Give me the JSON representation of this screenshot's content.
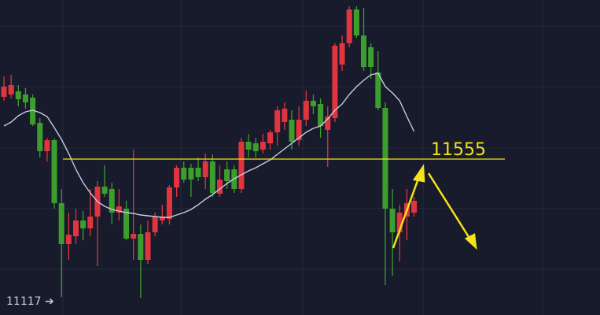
{
  "chart_data": {
    "type": "candlestick",
    "ylim": [
      11060,
      12060
    ],
    "up_color": "#e2343f",
    "down_color": "#3c9f2d",
    "ma_color": "#c9cbe0",
    "level": 11555,
    "level_color": "#f4e21a",
    "low_label": "11117 ➔",
    "open": [
      11752.5,
      11760,
      11770,
      11760,
      11750,
      11670,
      11580,
      11615,
      11415,
      11285,
      11310,
      11360,
      11335,
      11372.5,
      11467.5,
      11460,
      11385,
      11397.5,
      11302.5,
      11317.5,
      11235,
      11322.5,
      11360,
      11365,
      11465,
      11527.5,
      11527.5,
      11527.5,
      11497.5,
      11547.5,
      11445,
      11522.5,
      11522.5,
      11460,
      11610,
      11605,
      11585,
      11605,
      11640,
      11672.5,
      11680,
      11615,
      11680,
      11740,
      11730,
      11647.5,
      11685,
      11855,
      11922.5,
      12030,
      11947.5,
      11910,
      11830,
      11717.5,
      11397.5,
      11322.5,
      11372.5,
      11385
    ],
    "high": [
      11817.5,
      11822.5,
      11790,
      11780,
      11760,
      11685,
      11622.5,
      11620,
      11460,
      11385,
      11397.5,
      11390,
      11460,
      11485,
      11535,
      11480,
      11460,
      11422.5,
      11585,
      11347.5,
      11360,
      11385,
      11410,
      11472.5,
      11535,
      11547.5,
      11540,
      11560,
      11572.5,
      11570,
      11535,
      11547.5,
      11535,
      11622.5,
      11635,
      11622.5,
      11635,
      11647.5,
      11722.5,
      11735,
      11710,
      11722.5,
      11772.5,
      11760,
      11747.5,
      11722.5,
      11922.5,
      11947.5,
      12040,
      12040,
      12035,
      11922.5,
      11897.5,
      11735,
      11460,
      11410,
      11460,
      11435
    ],
    "low": [
      11740,
      11747.5,
      11722.5,
      11715,
      11660,
      11560,
      11547.5,
      11397.5,
      11117,
      11235,
      11285,
      11297.5,
      11310,
      11215,
      11435,
      11347.5,
      11360,
      11297.5,
      11235,
      11115,
      11222.5,
      11310,
      11347.5,
      11347.5,
      11435,
      11480,
      11435,
      11485,
      11460,
      11435,
      11435,
      11460,
      11447.5,
      11447.5,
      11560,
      11560,
      11572.5,
      11585,
      11597.5,
      11647.5,
      11585,
      11597.5,
      11660,
      11697.5,
      11622.5,
      11530,
      11672.5,
      11835,
      11910,
      11940,
      11835,
      11810,
      11710,
      11155,
      11185,
      11230,
      11297.5,
      11372.5
    ],
    "close": [
      11785,
      11790,
      11745,
      11735,
      11665,
      11580,
      11615,
      11415,
      11285,
      11315,
      11360,
      11335,
      11372.5,
      11467.5,
      11445,
      11385,
      11405,
      11302.5,
      11317.5,
      11235,
      11322.5,
      11372.5,
      11372.5,
      11465,
      11527.5,
      11490,
      11490,
      11497.5,
      11547.5,
      11447.5,
      11490,
      11485,
      11460,
      11610,
      11585,
      11580,
      11610,
      11640,
      11710,
      11715,
      11610,
      11680,
      11740,
      11722.5,
      11660,
      11690,
      11915,
      11922.5,
      12030,
      11947.5,
      11847.5,
      11847.5,
      11717.5,
      11397.5,
      11322.5,
      11385,
      11415,
      11422.5
    ],
    "ma": [
      11660,
      11672.5,
      11692.5,
      11705,
      11710,
      11702.5,
      11690,
      11655,
      11617.5,
      11572.5,
      11522.5,
      11480,
      11447.5,
      11420,
      11405,
      11395,
      11390,
      11385,
      11382.5,
      11377.5,
      11375,
      11372.5,
      11370,
      11370,
      11377.5,
      11385,
      11395,
      11410,
      11427.5,
      11442.5,
      11460,
      11477.5,
      11492.5,
      11505,
      11517.5,
      11527.5,
      11540,
      11552.5,
      11570,
      11587.5,
      11605,
      11622.5,
      11640,
      11652.5,
      11660,
      11682.5,
      11710,
      11730,
      11760,
      11785,
      11805,
      11822.5,
      11827.5,
      11785,
      11765,
      11740,
      11690,
      11642.5
    ]
  }
}
